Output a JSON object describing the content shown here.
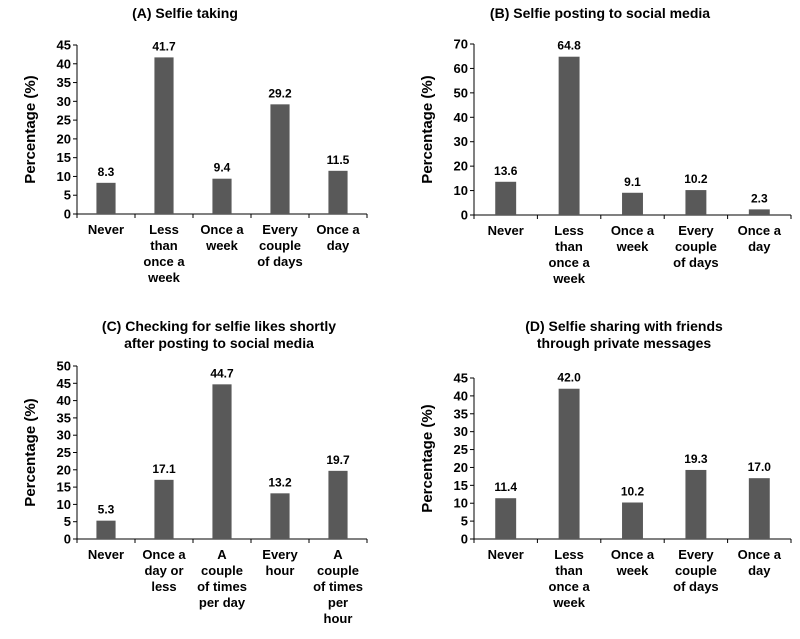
{
  "chart_data": [
    {
      "type": "bar",
      "title": "(A) Selfie taking",
      "ylabel": "Percentage (%)",
      "categories": [
        [
          "Never"
        ],
        [
          "Less",
          "than",
          "once a",
          "week"
        ],
        [
          "Once a",
          "week"
        ],
        [
          "Every",
          "couple",
          "of days"
        ],
        [
          "Once a",
          "day"
        ]
      ],
      "values": [
        8.3,
        41.7,
        9.4,
        29.2,
        11.5
      ],
      "value_labels": [
        "8.3",
        "41.7",
        "9.4",
        "29.2",
        "11.5"
      ],
      "ylim": [
        0,
        45
      ],
      "yticks": [
        0,
        5,
        10,
        15,
        20,
        25,
        30,
        35,
        40,
        45
      ],
      "bar_color": "#595959"
    },
    {
      "type": "bar",
      "title": "(B) Selfie posting to social media",
      "ylabel": "Percentage (%)",
      "categories": [
        [
          "Never"
        ],
        [
          "Less",
          "than",
          "once a",
          "week"
        ],
        [
          "Once a",
          "week"
        ],
        [
          "Every",
          "couple",
          "of days"
        ],
        [
          "Once a",
          "day"
        ]
      ],
      "values": [
        13.6,
        64.8,
        9.1,
        10.2,
        2.3
      ],
      "value_labels": [
        "13.6",
        "64.8",
        "9.1",
        "10.2",
        "2.3"
      ],
      "ylim": [
        0,
        70
      ],
      "yticks": [
        0,
        10,
        20,
        30,
        40,
        50,
        60,
        70
      ],
      "bar_color": "#595959"
    },
    {
      "type": "bar",
      "title": [
        "(C) Checking for selfie likes shortly",
        "after posting to social media"
      ],
      "ylabel": "Percentage (%)",
      "categories": [
        [
          "Never"
        ],
        [
          "Once a",
          "day or",
          "less"
        ],
        [
          "A",
          "couple",
          "of times",
          "per day"
        ],
        [
          "Every",
          "hour"
        ],
        [
          "A",
          "couple",
          "of times",
          "per",
          "hour"
        ]
      ],
      "values": [
        5.3,
        17.1,
        44.7,
        13.2,
        19.7
      ],
      "value_labels": [
        "5.3",
        "17.1",
        "44.7",
        "13.2",
        "19.7"
      ],
      "ylim": [
        0,
        50
      ],
      "yticks": [
        0,
        5,
        10,
        15,
        20,
        25,
        30,
        35,
        40,
        45,
        50
      ],
      "bar_color": "#595959"
    },
    {
      "type": "bar",
      "title": [
        "(D) Selfie sharing with friends",
        "through private messages"
      ],
      "ylabel": "Percentage (%)",
      "categories": [
        [
          "Never"
        ],
        [
          "Less",
          "than",
          "once a",
          "week"
        ],
        [
          "Once a",
          "week"
        ],
        [
          "Every",
          "couple",
          "of days"
        ],
        [
          "Once a",
          "day"
        ]
      ],
      "values": [
        11.4,
        42.0,
        10.2,
        19.3,
        17.0
      ],
      "value_labels": [
        "11.4",
        "42.0",
        "10.2",
        "19.3",
        "17.0"
      ],
      "ylim": [
        0,
        45
      ],
      "yticks": [
        0,
        5,
        10,
        15,
        20,
        25,
        30,
        35,
        40,
        45
      ],
      "bar_color": "#595959"
    }
  ]
}
